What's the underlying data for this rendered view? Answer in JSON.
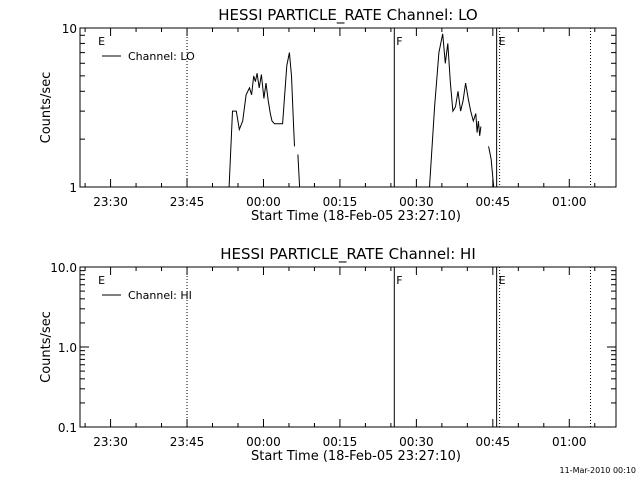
{
  "footer": {
    "timestamp": "11-Mar-2010 00:10"
  },
  "chart_data": [
    {
      "type": "line",
      "title": "HESSI PARTICLE_RATE Channel: LO",
      "xlabel": "Start Time (18-Feb-05 23:27:10)",
      "ylabel": "Counts/sec",
      "y_scale": "log",
      "xlim": [
        0,
        2310
      ],
      "ylim": [
        1,
        10
      ],
      "x_ticks": [
        {
          "t": 170,
          "label": "23:30"
        },
        {
          "t": 1070,
          "label": "23:45"
        },
        {
          "t": 1970,
          "label": "00:00"
        },
        {
          "t": 2870,
          "label": "00:15"
        },
        {
          "t": 3770,
          "label": "00:30"
        },
        {
          "t": 4670,
          "label": "00:45"
        },
        {
          "t": 5570,
          "label": "01:00"
        }
      ],
      "y_ticks": [
        {
          "v": 1,
          "label": "1"
        },
        {
          "v": 10,
          "label": "10"
        }
      ],
      "legend": {
        "position": "top-left",
        "entries": [
          "Channel: LO"
        ]
      },
      "markers": [
        {
          "t": 0,
          "label": "E",
          "style": "none"
        },
        {
          "t": 1070,
          "label": "",
          "style": "dotted"
        },
        {
          "t": 3510,
          "label": "F",
          "style": "solid"
        },
        {
          "t": 4715,
          "label": "E",
          "style": "solid"
        },
        {
          "t": 4750,
          "label": "",
          "style": "dotted"
        },
        {
          "t": 5820,
          "label": "",
          "style": "dotted"
        }
      ],
      "segments": [
        [
          {
            "t": 1565,
            "v": 1
          },
          {
            "t": 1605,
            "v": 3
          },
          {
            "t": 1650,
            "v": 3
          },
          {
            "t": 1685,
            "v": 2.3
          },
          {
            "t": 1725,
            "v": 2.6
          },
          {
            "t": 1765,
            "v": 3.8
          },
          {
            "t": 1805,
            "v": 4.2
          },
          {
            "t": 1830,
            "v": 3.8
          },
          {
            "t": 1855,
            "v": 5
          },
          {
            "t": 1875,
            "v": 4.6
          },
          {
            "t": 1895,
            "v": 5.2
          },
          {
            "t": 1920,
            "v": 4.2
          },
          {
            "t": 1945,
            "v": 5.1
          },
          {
            "t": 1975,
            "v": 3.6
          },
          {
            "t": 2000,
            "v": 4.5
          },
          {
            "t": 2025,
            "v": 3.5
          },
          {
            "t": 2050,
            "v": 2.9
          },
          {
            "t": 2070,
            "v": 2.6
          },
          {
            "t": 2100,
            "v": 2.5
          },
          {
            "t": 2195,
            "v": 2.5
          },
          {
            "t": 2245,
            "v": 5.8
          },
          {
            "t": 2275,
            "v": 7
          },
          {
            "t": 2300,
            "v": 5
          },
          {
            "t": 2325,
            "v": 2.4
          },
          {
            "t": 2335,
            "v": 1.8
          }
        ],
        [
          {
            "t": 2375,
            "v": 1.6
          },
          {
            "t": 2395,
            "v": 1
          }
        ],
        [
          {
            "t": 3925,
            "v": 1
          },
          {
            "t": 3985,
            "v": 3.2
          },
          {
            "t": 4035,
            "v": 7
          },
          {
            "t": 4080,
            "v": 9.2
          },
          {
            "t": 4110,
            "v": 6
          },
          {
            "t": 4140,
            "v": 8
          },
          {
            "t": 4170,
            "v": 4.5
          },
          {
            "t": 4200,
            "v": 3
          },
          {
            "t": 4230,
            "v": 3.2
          },
          {
            "t": 4260,
            "v": 4
          },
          {
            "t": 4290,
            "v": 3
          },
          {
            "t": 4320,
            "v": 3.5
          },
          {
            "t": 4350,
            "v": 4.5
          },
          {
            "t": 4380,
            "v": 3.6
          },
          {
            "t": 4410,
            "v": 3
          },
          {
            "t": 4440,
            "v": 2.6
          },
          {
            "t": 4470,
            "v": 2.9
          },
          {
            "t": 4485,
            "v": 2.2
          },
          {
            "t": 4500,
            "v": 2.6
          },
          {
            "t": 4515,
            "v": 2.1
          },
          {
            "t": 4530,
            "v": 2.4
          }
        ],
        [
          {
            "t": 4620,
            "v": 1.8
          },
          {
            "t": 4650,
            "v": 1.5
          },
          {
            "t": 4680,
            "v": 1
          }
        ]
      ]
    },
    {
      "type": "line",
      "title": "HESSI PARTICLE_RATE Channel: HI",
      "xlabel": "Start Time (18-Feb-05 23:27:10)",
      "ylabel": "Counts/sec",
      "y_scale": "log",
      "xlim": [
        0,
        2310
      ],
      "ylim": [
        0.1,
        10
      ],
      "x_ticks": [
        {
          "t": 170,
          "label": "23:30"
        },
        {
          "t": 1070,
          "label": "23:45"
        },
        {
          "t": 1970,
          "label": "00:00"
        },
        {
          "t": 2870,
          "label": "00:15"
        },
        {
          "t": 3770,
          "label": "00:30"
        },
        {
          "t": 4670,
          "label": "00:45"
        },
        {
          "t": 5570,
          "label": "01:00"
        }
      ],
      "y_ticks": [
        {
          "v": 0.1,
          "label": "0.1"
        },
        {
          "v": 1,
          "label": "1.0"
        },
        {
          "v": 10,
          "label": "10.0"
        }
      ],
      "legend": {
        "position": "top-left",
        "entries": [
          "Channel: HI"
        ]
      },
      "markers": [
        {
          "t": 0,
          "label": "E",
          "style": "none"
        },
        {
          "t": 1070,
          "label": "",
          "style": "dotted"
        },
        {
          "t": 3510,
          "label": "F",
          "style": "solid"
        },
        {
          "t": 4715,
          "label": "E",
          "style": "solid"
        },
        {
          "t": 4750,
          "label": "",
          "style": "dotted"
        },
        {
          "t": 5820,
          "label": "",
          "style": "dotted"
        }
      ],
      "segments": []
    }
  ]
}
